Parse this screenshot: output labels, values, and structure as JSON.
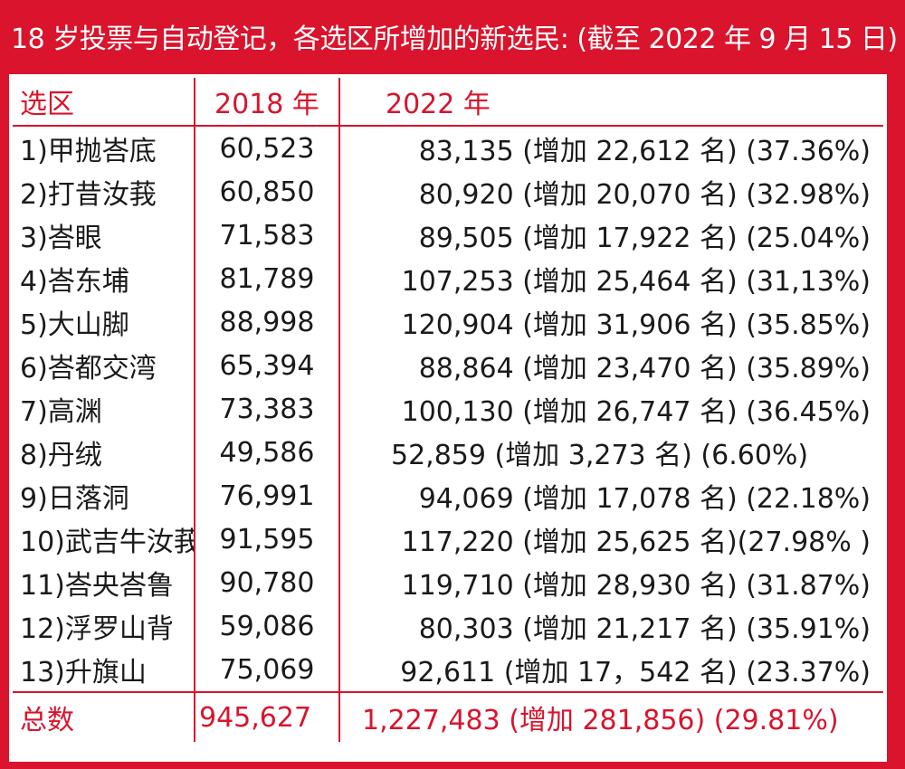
{
  "title": "18 岁投票与自动登记，各选区所增加的新选民: (截至 2022 年 9 月 15 日)",
  "columns": {
    "district": "选区",
    "y2018": "2018 年",
    "y2022": "2022 年"
  },
  "rows": [
    {
      "district": "1)甲抛峇底",
      "y2018": "60,523",
      "y2022": "83,135 (增加 22,612 名) (37.36%)"
    },
    {
      "district": "2)打昔汝莪",
      "y2018": "60,850",
      "y2022": "80,920 (增加 20,070 名) (32.98%)"
    },
    {
      "district": "3)峇眼",
      "y2018": "71,583",
      "y2022": "89,505 (增加 17,922 名) (25.04%)"
    },
    {
      "district": "4)峇东埔",
      "y2018": "81,789",
      "y2022": "107,253 (增加 25,464 名) (31,13%)"
    },
    {
      "district": "5)大山脚",
      "y2018": "88,998",
      "y2022": "120,904 (增加 31,906 名) (35.85%)"
    },
    {
      "district": "6)峇都交湾",
      "y2018": "65,394",
      "y2022": "88,864 (增加 23,470 名) (35.89%)"
    },
    {
      "district": "7)高渊",
      "y2018": "73,383",
      "y2022": "100,130 (增加 26,747 名) (36.45%)"
    },
    {
      "district": "8)丹绒",
      "y2018": "49,586",
      "y2022": "52,859 (增加 3,273 名) (6.60%)"
    },
    {
      "district": "9)日落洞",
      "y2018": "76,991",
      "y2022": "94,069 (增加 17,078 名) (22.18%)"
    },
    {
      "district": "10)武吉牛汝莪",
      "y2018": "91,595",
      "y2022": "117,220 (增加 25,625 名)(27.98% )"
    },
    {
      "district": "11)峇央峇鲁",
      "y2018": "90,780",
      "y2022": "119,710 (增加 28,930 名) (31.87%)"
    },
    {
      "district": "12)浮罗山背",
      "y2018": "59,086",
      "y2022": "80,303 (增加 21,217 名) (35.91%)"
    },
    {
      "district": "13)升旗山",
      "y2018": "75,069",
      "y2022": "92,611 (增加 17，542 名) (23.37%)"
    }
  ],
  "total": {
    "label": "总数",
    "y2018": "945,627",
    "y2022": "1,227,483  (增加 281,856)   (29.81%)"
  },
  "colors": {
    "accent": "#d9142c",
    "background": "#ffffff",
    "text": "#1a1a1a"
  }
}
